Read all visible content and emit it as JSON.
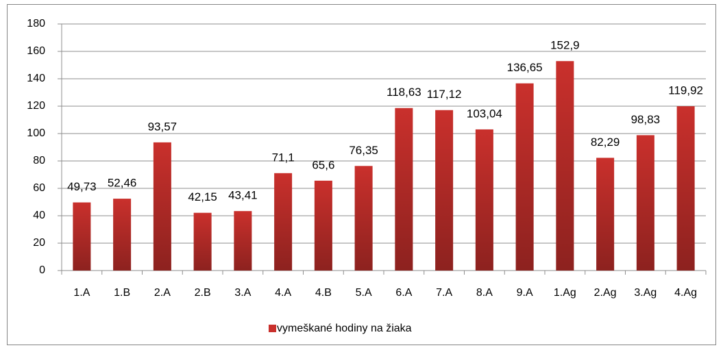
{
  "chart_data": {
    "type": "bar",
    "categories": [
      "1.A",
      "1.B",
      "2.A",
      "2.B",
      "3.A",
      "4.A",
      "4.B",
      "5.A",
      "6.A",
      "7.A",
      "8.A",
      "9.A",
      "1.Ag",
      "2.Ag",
      "3.Ag",
      "4.Ag"
    ],
    "series": [
      {
        "name": "vymeškané hodiny na žiaka",
        "color": "#c9302c",
        "values": [
          49.73,
          52.46,
          93.57,
          42.15,
          43.41,
          71.1,
          65.6,
          76.35,
          118.63,
          117.12,
          103.04,
          136.65,
          152.9,
          82.29,
          98.83,
          119.92
        ],
        "value_labels": [
          "49,73",
          "52,46",
          "93,57",
          "42,15",
          "43,41",
          "71,1",
          "65,6",
          "76,35",
          "118,63",
          "117,12",
          "103,04",
          "136,65",
          "152,9",
          "82,29",
          "98,83",
          "119,92"
        ]
      }
    ],
    "ylim": [
      0,
      180
    ],
    "yticks": [
      0,
      20,
      40,
      60,
      80,
      100,
      120,
      140,
      160,
      180
    ],
    "grid": true,
    "legend": "bottom"
  }
}
